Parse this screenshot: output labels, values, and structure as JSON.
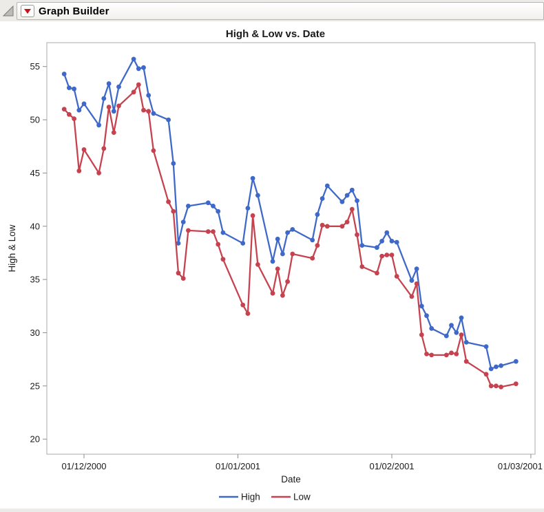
{
  "window": {
    "outline_title": "Graph Builder",
    "icons": {
      "disclosure_icon": "outline-open-triangle",
      "menu_icon": "red-triangle-down"
    }
  },
  "chart_data": {
    "type": "line",
    "title": "High & Low vs. Date",
    "xlabel": "Date",
    "ylabel": "High & Low",
    "legend_position": "bottom",
    "grid": false,
    "x_axis": {
      "tick_dates": [
        "2000-12-01",
        "2001-01-01",
        "2001-02-01",
        "2001-03-01"
      ],
      "tick_labels": [
        "01/12/2000",
        "01/01/2001",
        "01/02/2001",
        "01/03/2001"
      ],
      "xlim_dates": [
        "2000-11-23",
        "2001-03-02"
      ]
    },
    "y_axis": {
      "ticks": [
        20,
        25,
        30,
        35,
        40,
        45,
        50,
        55
      ],
      "ylim": [
        18.6,
        57.3
      ]
    },
    "dates": [
      "2000-11-27",
      "2000-11-28",
      "2000-11-29",
      "2000-11-30",
      "2000-12-01",
      "2000-12-04",
      "2000-12-05",
      "2000-12-06",
      "2000-12-07",
      "2000-12-08",
      "2000-12-11",
      "2000-12-12",
      "2000-12-13",
      "2000-12-14",
      "2000-12-15",
      "2000-12-18",
      "2000-12-19",
      "2000-12-20",
      "2000-12-21",
      "2000-12-22",
      "2000-12-26",
      "2000-12-27",
      "2000-12-28",
      "2000-12-29",
      "2001-01-02",
      "2001-01-03",
      "2001-01-04",
      "2001-01-05",
      "2001-01-08",
      "2001-01-09",
      "2001-01-10",
      "2001-01-11",
      "2001-01-12",
      "2001-01-16",
      "2001-01-17",
      "2001-01-18",
      "2001-01-19",
      "2001-01-22",
      "2001-01-23",
      "2001-01-24",
      "2001-01-25",
      "2001-01-26",
      "2001-01-29",
      "2001-01-30",
      "2001-01-31",
      "2001-02-01",
      "2001-02-02",
      "2001-02-05",
      "2001-02-06",
      "2001-02-07",
      "2001-02-08",
      "2001-02-09",
      "2001-02-12",
      "2001-02-13",
      "2001-02-14",
      "2001-02-15",
      "2001-02-16",
      "2001-02-20",
      "2001-02-21",
      "2001-02-22",
      "2001-02-23",
      "2001-02-26"
    ],
    "series": [
      {
        "name": "High",
        "color": "#3E69C8",
        "values": [
          54.3,
          53.0,
          52.9,
          50.9,
          51.5,
          49.5,
          52.0,
          53.4,
          50.8,
          53.1,
          55.7,
          54.8,
          54.9,
          52.3,
          50.6,
          50.0,
          45.9,
          38.4,
          40.4,
          41.9,
          42.2,
          41.9,
          41.4,
          39.4,
          38.4,
          41.7,
          44.5,
          42.9,
          36.7,
          38.8,
          37.4,
          39.4,
          39.7,
          38.7,
          41.1,
          42.6,
          43.8,
          42.3,
          42.9,
          43.4,
          42.4,
          38.2,
          38.0,
          38.6,
          39.4,
          38.6,
          38.5,
          34.9,
          36.0,
          32.5,
          31.6,
          30.4,
          29.7,
          30.7,
          30.0,
          31.4,
          29.1,
          28.7,
          26.6,
          26.8,
          26.9,
          27.3
        ]
      },
      {
        "name": "Low",
        "color": "#C6424F",
        "values": [
          51.0,
          50.5,
          50.1,
          45.2,
          47.2,
          45.0,
          47.3,
          51.2,
          48.8,
          51.3,
          52.6,
          53.3,
          50.9,
          50.8,
          47.1,
          42.3,
          41.4,
          35.6,
          35.1,
          39.6,
          39.5,
          39.5,
          38.3,
          36.9,
          32.6,
          31.8,
          41.0,
          36.4,
          33.7,
          36.0,
          33.5,
          34.8,
          37.4,
          37.0,
          38.2,
          40.1,
          40.0,
          40.0,
          40.4,
          41.6,
          39.2,
          36.2,
          35.6,
          37.2,
          37.3,
          37.3,
          35.3,
          33.4,
          34.6,
          29.8,
          28.0,
          27.9,
          27.9,
          28.1,
          28.0,
          29.8,
          27.3,
          26.1,
          25.0,
          25.0,
          24.9,
          25.2
        ]
      }
    ]
  }
}
